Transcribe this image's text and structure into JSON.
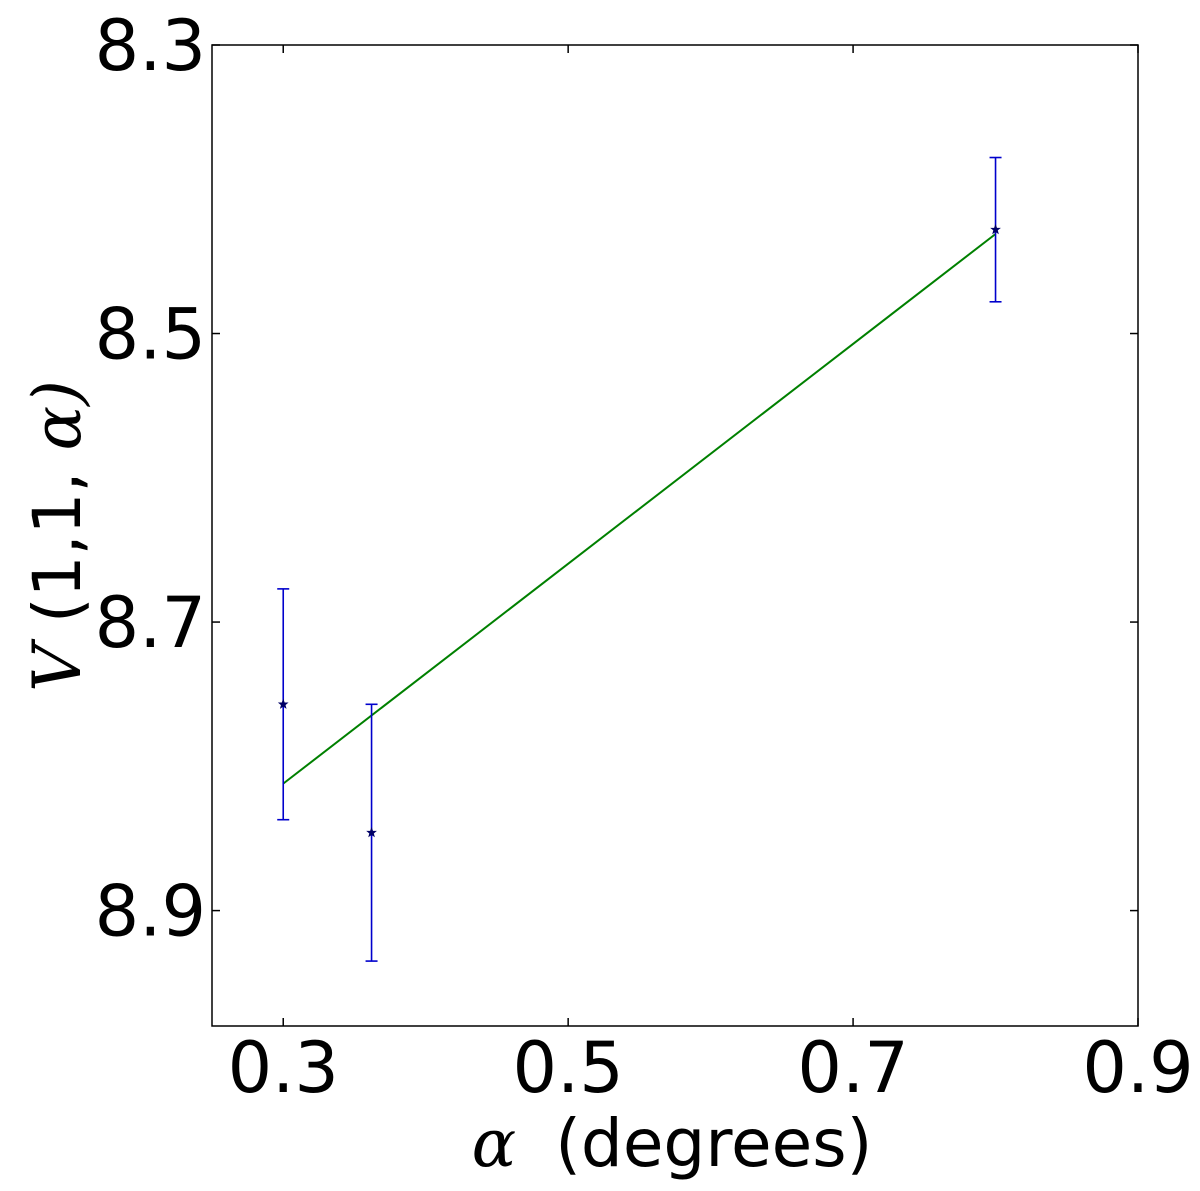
{
  "chart_data": {
    "type": "scatter",
    "title": "",
    "xlabel": "(degrees)",
    "xlabel_symbol": "α",
    "ylabel": "(1,1,",
    "ylabel_symbol_prefix": "V",
    "ylabel_symbol_suffix": "α)",
    "xlim": [
      0.25,
      0.9
    ],
    "ylim": [
      8.3,
      8.98
    ],
    "y_inverted": true,
    "x_ticks": [
      0.3,
      0.5,
      0.7,
      0.9
    ],
    "x_tick_labels": [
      "0.3",
      "0.5",
      "0.7",
      "0.9"
    ],
    "y_ticks": [
      8.3,
      8.5,
      8.7,
      8.9
    ],
    "y_tick_labels": [
      "8.3",
      "8.5",
      "8.7",
      "8.9"
    ],
    "grid": false,
    "series": [
      {
        "kind": "errorbar",
        "marker": "star",
        "color": "#0000cc",
        "x": [
          0.3,
          0.362,
          0.8
        ],
        "y": [
          8.757,
          8.846,
          8.428
        ],
        "yerr": [
          0.08,
          0.089,
          0.05
        ]
      },
      {
        "kind": "line",
        "color": "#008000",
        "x": [
          0.3,
          0.8
        ],
        "y": [
          8.812,
          8.431
        ]
      }
    ]
  }
}
